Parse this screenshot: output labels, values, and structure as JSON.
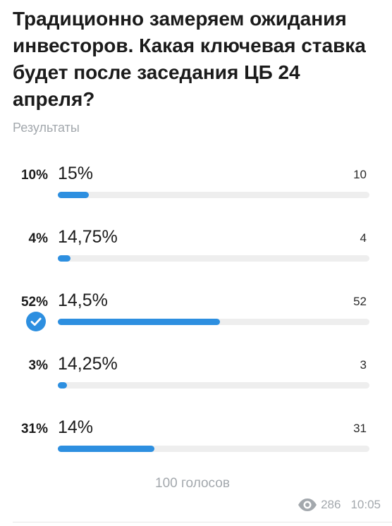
{
  "poll": {
    "question": "Традиционно замеряем ожидания инвесторов. Какая ключевая ставка будет после заседания ЦБ 24 апреля?",
    "type_label": "Результаты",
    "options": [
      {
        "percent_label": "10%",
        "label": "15%",
        "votes": "10",
        "percent": 10,
        "selected": false
      },
      {
        "percent_label": "4%",
        "label": "14,75%",
        "votes": "4",
        "percent": 4,
        "selected": false
      },
      {
        "percent_label": "52%",
        "label": "14,5%",
        "votes": "52",
        "percent": 52,
        "selected": true
      },
      {
        "percent_label": "3%",
        "label": "14,25%",
        "votes": "3",
        "percent": 3,
        "selected": false
      },
      {
        "percent_label": "31%",
        "label": "14%",
        "votes": "31",
        "percent": 31,
        "selected": false
      }
    ],
    "total_votes": "100 голосов",
    "views": "286",
    "time": "10:05"
  },
  "colors": {
    "accent": "#2d8fe0",
    "track": "#eeeeee",
    "muted_text": "#a3a8ad"
  },
  "icons": {
    "selected": "checkmark-circle-icon",
    "views": "eye-icon"
  }
}
